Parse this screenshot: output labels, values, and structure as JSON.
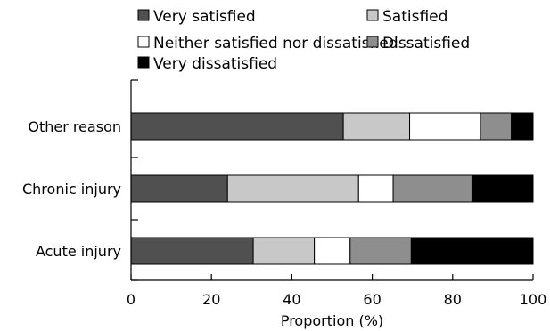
{
  "chart_data": {
    "type": "bar",
    "orientation": "horizontal",
    "stacked": true,
    "categories": [
      "Other reason",
      "Chronic injury",
      "Acute injury"
    ],
    "series": [
      {
        "name": "Very satisfied",
        "color": "#505050",
        "values": [
          52.8,
          24.0,
          30.4
        ]
      },
      {
        "name": "Satisfied",
        "color": "#c8c8c8",
        "values": [
          16.5,
          32.6,
          15.2
        ]
      },
      {
        "name": "Neither satisfied nor dissatisfied",
        "color": "#ffffff",
        "values": [
          17.6,
          8.6,
          8.9
        ]
      },
      {
        "name": "Dissatisfied",
        "color": "#8e8e8e",
        "values": [
          7.7,
          19.6,
          15.2
        ]
      },
      {
        "name": "Very dissatisfied",
        "color": "#000000",
        "values": [
          5.4,
          15.2,
          30.3
        ]
      }
    ],
    "xlabel": "Proportion (%)",
    "ylabel": "",
    "xlim": [
      0,
      100
    ],
    "xticks": [
      "0",
      "20",
      "40",
      "60",
      "80",
      "100"
    ],
    "legend_position": "top",
    "grid": false
  }
}
